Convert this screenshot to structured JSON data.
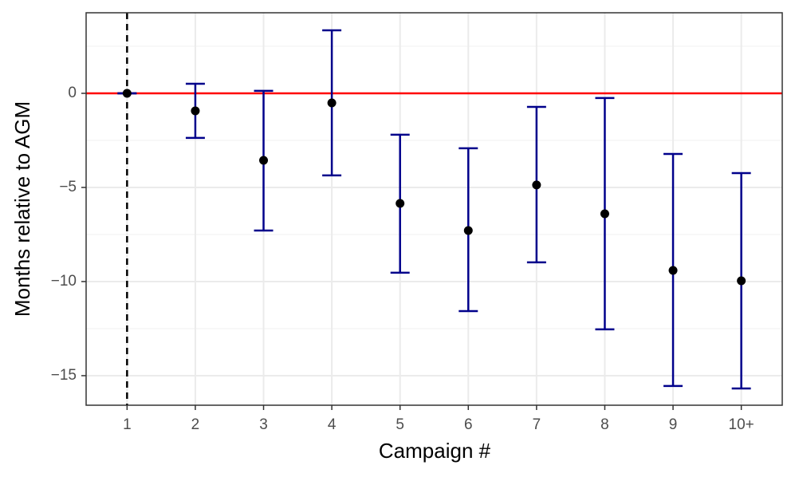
{
  "chart_data": {
    "type": "errorbar",
    "x_label": "Campaign #",
    "y_label": "Months relative to AGM",
    "categories": [
      "1",
      "2",
      "3",
      "4",
      "5",
      "6",
      "7",
      "8",
      "9",
      "10+"
    ],
    "series": [
      {
        "color": "#000000",
        "error_color": "#00008b",
        "values": [
          0,
          -0.93,
          -3.56,
          -0.51,
          -5.85,
          -7.29,
          -4.87,
          -6.4,
          -9.41,
          -9.96
        ],
        "lower": [
          0,
          -2.37,
          -7.29,
          -4.36,
          -9.53,
          -11.57,
          -8.98,
          -12.54,
          -15.55,
          -15.68
        ],
        "upper": [
          0,
          0.51,
          0.13,
          3.35,
          -2.2,
          -2.92,
          -0.72,
          -0.25,
          -3.22,
          -4.24
        ]
      }
    ],
    "ylim": [
      -16.57,
      4.28
    ],
    "yticks": [
      {
        "value": -15,
        "label": "−15"
      },
      {
        "value": -10,
        "label": "−10"
      },
      {
        "value": -5,
        "label": "−5"
      },
      0
    ],
    "yminor": [
      -12.5,
      -7.5,
      -2.5,
      2.5
    ],
    "grid": true,
    "hline": 0,
    "hline_color": "#ff0000",
    "vline": "1",
    "vline_color": "#000000"
  }
}
